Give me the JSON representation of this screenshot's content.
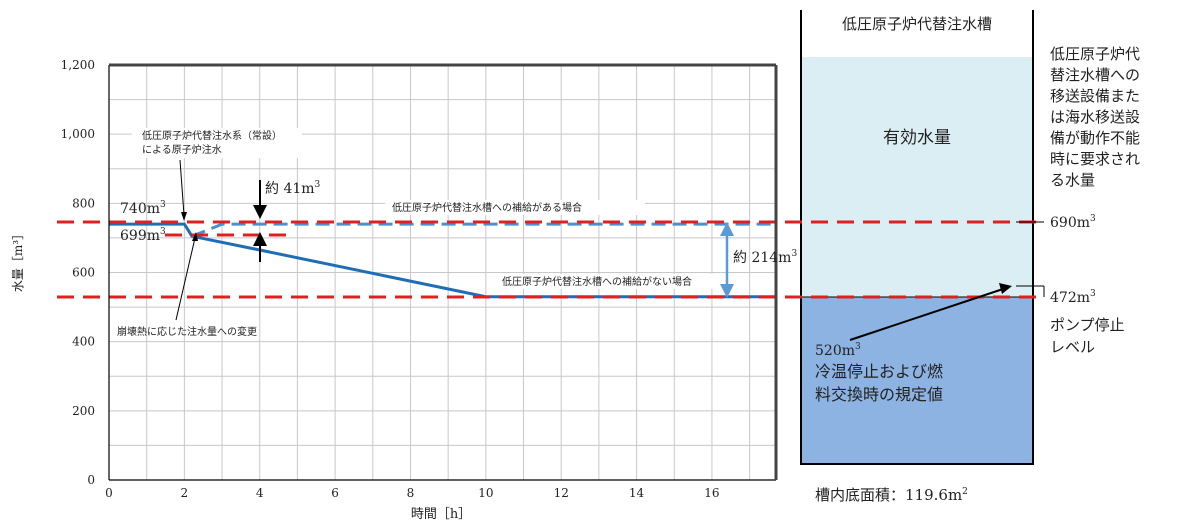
{
  "chart_data": {
    "type": "line",
    "xlabel": "時間［h］",
    "ylabel": "水量［m³］",
    "xlim": [
      0,
      17.7
    ],
    "ylim": [
      0,
      1200
    ],
    "xticks": [
      0,
      2,
      4,
      6,
      8,
      10,
      12,
      14,
      16
    ],
    "yticks": [
      0,
      200,
      400,
      600,
      800,
      1000,
      1200
    ],
    "ytick_labels": [
      "0",
      "200",
      "400",
      "600",
      "800",
      "1,000",
      "1,200"
    ],
    "grid": true,
    "series": [
      {
        "name": "低圧原子炉代替注水槽への補給がない場合",
        "x": [
          0,
          2,
          2.2,
          4,
          10,
          17.7
        ],
        "y": [
          740,
          740,
          705,
          665,
          530,
          530
        ],
        "color": "#1f6db5",
        "style": "solid"
      },
      {
        "name": "低圧原子炉代替注水槽への補給がある場合",
        "x": [
          2.2,
          2.6,
          3.0,
          17.7
        ],
        "y": [
          705,
          722,
          740,
          740
        ],
        "color": "#4a90d0",
        "style": "dashed"
      }
    ],
    "reference_lines": [
      {
        "y": 740,
        "color": "#e02020",
        "style": "dashed"
      },
      {
        "y": 530,
        "color": "#e02020",
        "style": "dashed"
      },
      {
        "y": 710,
        "color": "#e02020",
        "style": "dashed",
        "x_range": [
          2,
          4.1
        ]
      }
    ]
  },
  "labels": {
    "v740": "740m",
    "v699": "699m",
    "v41": "約 41m",
    "v214": "約 214m",
    "sup3": "3",
    "annot_jouset": "低圧原子炉代替注水系（常設）",
    "annot_jouset2": "による原子炉注水",
    "annot_decay": "崩壊熱に応じた注水量への変更",
    "supply_yes": "低圧原子炉代替注水槽への補給がある場合",
    "supply_no": "低圧原子炉代替注水槽への補給がない場合"
  },
  "tank": {
    "title": "低圧原子炉代替注水槽",
    "effective": "有効水量",
    "right_note_lines": [
      "低圧原子炉代",
      "替注水槽への",
      "移送設備また",
      "は海水移送設",
      "備が動作不能",
      "時に要求され",
      "る水量"
    ],
    "level_690": "690m",
    "level_472": "472m",
    "pump_stop_lines": [
      "ポンプ停止",
      "レベル"
    ],
    "v520": "520m",
    "cold_lines": [
      "冷温停止および燃",
      "料交換時の規定値"
    ],
    "bottom_area": "槽内底面積：119.6m",
    "sup2": "2",
    "colors": {
      "upper": "#dbeef4",
      "lower": "#8db3e2"
    }
  }
}
